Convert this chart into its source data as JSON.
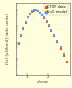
{
  "background_color": "#ffffdd",
  "plot_bg": "#ffffdd",
  "xlabel": "v/vsw",
  "ylabel": "f(v) [s3/km3] (arb. units)",
  "xlim": [
    0.5,
    3.0
  ],
  "ylim": [
    0.0001,
    3.0
  ],
  "legend_entries": [
    {
      "label": "CTOF data",
      "color": "#dd6600"
    },
    {
      "label": "V=0 model",
      "color": "#6699dd"
    }
  ],
  "series1_x": [
    0.65,
    0.75,
    0.85,
    0.95,
    1.05,
    1.15,
    1.25,
    1.35,
    1.42,
    1.52,
    1.62,
    1.72,
    1.82,
    1.92,
    2.02,
    2.15,
    2.28,
    2.42,
    2.58,
    2.72,
    2.85
  ],
  "series1_y": [
    0.008,
    0.025,
    0.07,
    0.17,
    0.36,
    0.6,
    0.82,
    0.96,
    1.0,
    0.86,
    0.68,
    0.5,
    0.34,
    0.2,
    0.11,
    0.055,
    0.026,
    0.011,
    0.004,
    0.0015,
    0.0006
  ],
  "series2_x": [
    0.65,
    0.75,
    0.85,
    0.95,
    1.05,
    1.15,
    1.25,
    1.35,
    1.42,
    1.52,
    1.62,
    1.72,
    1.82,
    1.92,
    2.02,
    2.15,
    2.28,
    2.42,
    2.58,
    2.72
  ],
  "series2_y": [
    0.01,
    0.03,
    0.08,
    0.19,
    0.39,
    0.63,
    0.86,
    0.99,
    1.0,
    0.88,
    0.72,
    0.54,
    0.37,
    0.22,
    0.12,
    0.06,
    0.028,
    0.012,
    0.005,
    0.002
  ],
  "xticks": [
    1.0,
    2.0
  ],
  "axis_label_fontsize": 3.0,
  "tick_fontsize": 3.0,
  "legend_fontsize": 2.5,
  "marker_size": 1.5,
  "spine_color": "#555555",
  "spine_linewidth": 0.4
}
